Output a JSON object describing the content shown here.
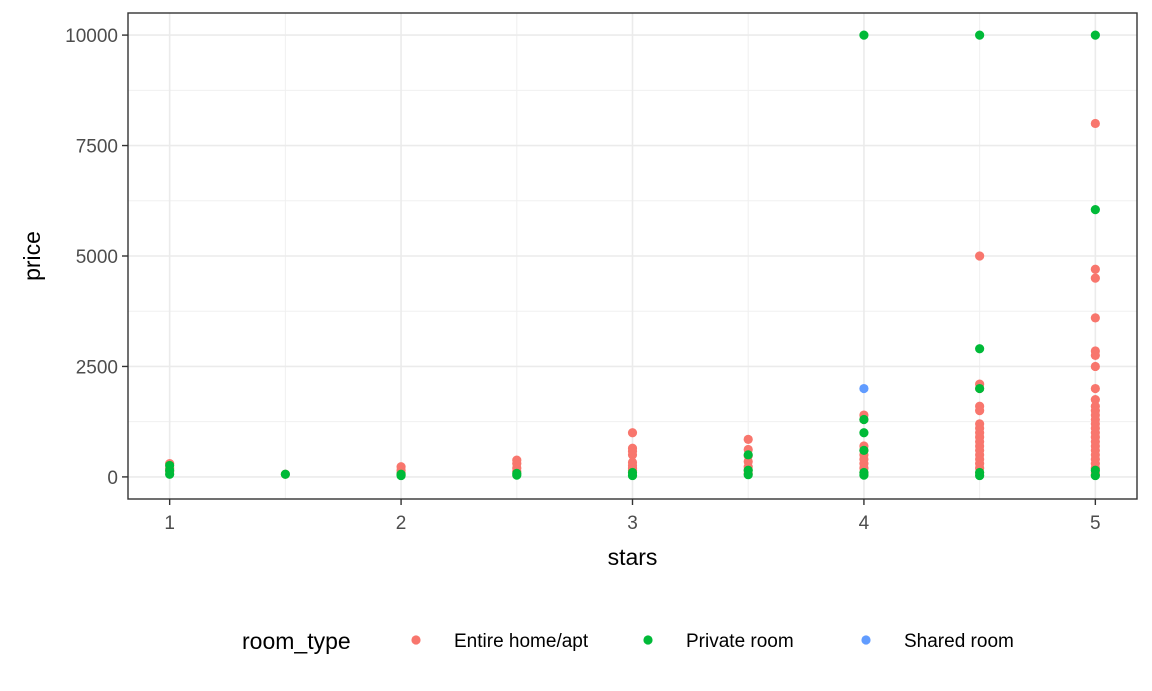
{
  "chart_data": {
    "type": "scatter",
    "xlabel": "stars",
    "ylabel": "price",
    "xlim": [
      0.82,
      5.18
    ],
    "ylim": [
      -500,
      10500
    ],
    "x_ticks": [
      1,
      2,
      3,
      4,
      5
    ],
    "y_ticks": [
      0,
      2500,
      5000,
      7500,
      10000
    ],
    "x_tick_labels": [
      "1",
      "2",
      "3",
      "4",
      "5"
    ],
    "y_tick_labels": [
      "0",
      "2500",
      "5000",
      "7500",
      "10000"
    ],
    "grid": true,
    "legend": {
      "title": "room_type",
      "position": "bottom"
    },
    "series": [
      {
        "name": "Entire home/apt",
        "color": "#F8766D",
        "points": [
          [
            1,
            300
          ],
          [
            1,
            200
          ],
          [
            1,
            120
          ],
          [
            1.5,
            60
          ],
          [
            2,
            230
          ],
          [
            2,
            150
          ],
          [
            2,
            90
          ],
          [
            2.5,
            380
          ],
          [
            2.5,
            300
          ],
          [
            2.5,
            200
          ],
          [
            2.5,
            120
          ],
          [
            3,
            1000
          ],
          [
            3,
            650
          ],
          [
            3,
            580
          ],
          [
            3,
            500
          ],
          [
            3,
            330
          ],
          [
            3,
            260
          ],
          [
            3,
            200
          ],
          [
            3,
            150
          ],
          [
            3,
            100
          ],
          [
            3.5,
            850
          ],
          [
            3.5,
            620
          ],
          [
            3.5,
            480
          ],
          [
            3.5,
            350
          ],
          [
            3.5,
            230
          ],
          [
            3.5,
            150
          ],
          [
            3.5,
            80
          ],
          [
            4,
            1400
          ],
          [
            4,
            1300
          ],
          [
            4,
            700
          ],
          [
            4,
            600
          ],
          [
            4,
            500
          ],
          [
            4,
            400
          ],
          [
            4,
            300
          ],
          [
            4,
            200
          ],
          [
            4,
            100
          ],
          [
            4.5,
            5000
          ],
          [
            4.5,
            2100
          ],
          [
            4.5,
            2000
          ],
          [
            4.5,
            1600
          ],
          [
            4.5,
            1500
          ],
          [
            4.5,
            1200
          ],
          [
            4.5,
            1100
          ],
          [
            4.5,
            1000
          ],
          [
            4.5,
            900
          ],
          [
            4.5,
            800
          ],
          [
            4.5,
            700
          ],
          [
            4.5,
            600
          ],
          [
            4.5,
            500
          ],
          [
            4.5,
            400
          ],
          [
            4.5,
            300
          ],
          [
            4.5,
            200
          ],
          [
            4.5,
            100
          ],
          [
            5,
            8000
          ],
          [
            5,
            4700
          ],
          [
            5,
            4500
          ],
          [
            5,
            3600
          ],
          [
            5,
            2850
          ],
          [
            5,
            2750
          ],
          [
            5,
            2500
          ],
          [
            5,
            2000
          ],
          [
            5,
            1750
          ],
          [
            5,
            1600
          ],
          [
            5,
            1500
          ],
          [
            5,
            1400
          ],
          [
            5,
            1300
          ],
          [
            5,
            1200
          ],
          [
            5,
            1100
          ],
          [
            5,
            1000
          ],
          [
            5,
            900
          ],
          [
            5,
            800
          ],
          [
            5,
            700
          ],
          [
            5,
            600
          ],
          [
            5,
            500
          ],
          [
            5,
            400
          ],
          [
            5,
            300
          ],
          [
            5,
            200
          ],
          [
            5,
            100
          ],
          [
            5,
            50
          ]
        ]
      },
      {
        "name": "Private room",
        "color": "#00BA38",
        "points": [
          [
            1,
            260
          ],
          [
            1,
            150
          ],
          [
            1,
            60
          ],
          [
            1.5,
            60
          ],
          [
            2,
            60
          ],
          [
            2,
            30
          ],
          [
            2.5,
            80
          ],
          [
            2.5,
            40
          ],
          [
            3,
            100
          ],
          [
            3,
            30
          ],
          [
            3.5,
            500
          ],
          [
            3.5,
            150
          ],
          [
            3.5,
            50
          ],
          [
            4,
            10000
          ],
          [
            4,
            1300
          ],
          [
            4,
            1000
          ],
          [
            4,
            600
          ],
          [
            4,
            100
          ],
          [
            4,
            40
          ],
          [
            4.5,
            10000
          ],
          [
            4.5,
            2900
          ],
          [
            4.5,
            2000
          ],
          [
            4.5,
            100
          ],
          [
            4.5,
            30
          ],
          [
            5,
            10000
          ],
          [
            5,
            6050
          ],
          [
            5,
            150
          ],
          [
            5,
            30
          ]
        ]
      },
      {
        "name": "Shared room",
        "color": "#619CFF",
        "points": [
          [
            4,
            2000
          ]
        ]
      }
    ]
  }
}
